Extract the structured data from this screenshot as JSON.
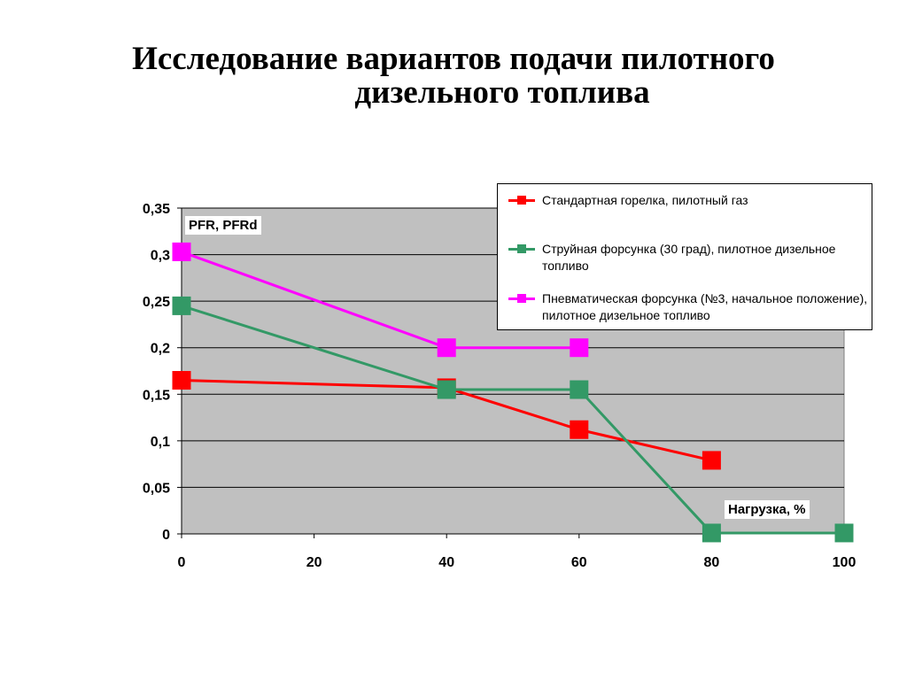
{
  "title": {
    "line1": "Исследование вариантов подачи пилотного",
    "line2": "дизельного топлива"
  },
  "chart_data": {
    "type": "line",
    "x_ticks": [
      "0",
      "20",
      "40",
      "60",
      "80",
      "100"
    ],
    "y_ticks": [
      "0",
      "0,05",
      "0,1",
      "0,15",
      "0,2",
      "0,25",
      "0,3",
      "0,35"
    ],
    "xlim": [
      0,
      100
    ],
    "ylim": [
      0,
      0.35
    ],
    "grid": "horizontal",
    "legend_position": "top-right",
    "ylabel_annotation": "PFR, PFRd",
    "xlabel_annotation": "Нагрузка, %",
    "series": [
      {
        "name": "Стандартная горелка, пилотный газ",
        "color": "#ff0000",
        "points": [
          [
            0,
            0.165
          ],
          [
            40,
            0.157
          ],
          [
            60,
            0.112
          ],
          [
            80,
            0.079
          ]
        ]
      },
      {
        "name": "Струйная форсунка (30 град), пилотное дизельное топливо",
        "color": "#339966",
        "points": [
          [
            0,
            0.245
          ],
          [
            40,
            0.155
          ],
          [
            60,
            0.155
          ],
          [
            80,
            0.001
          ],
          [
            100,
            0.001
          ]
        ]
      },
      {
        "name": "Пневматическая форсунка (№3, начальное положение), пилотное дизельное топливо",
        "color": "#ff00ff",
        "points": [
          [
            0,
            0.303
          ],
          [
            40,
            0.2
          ],
          [
            60,
            0.2
          ]
        ]
      }
    ]
  }
}
